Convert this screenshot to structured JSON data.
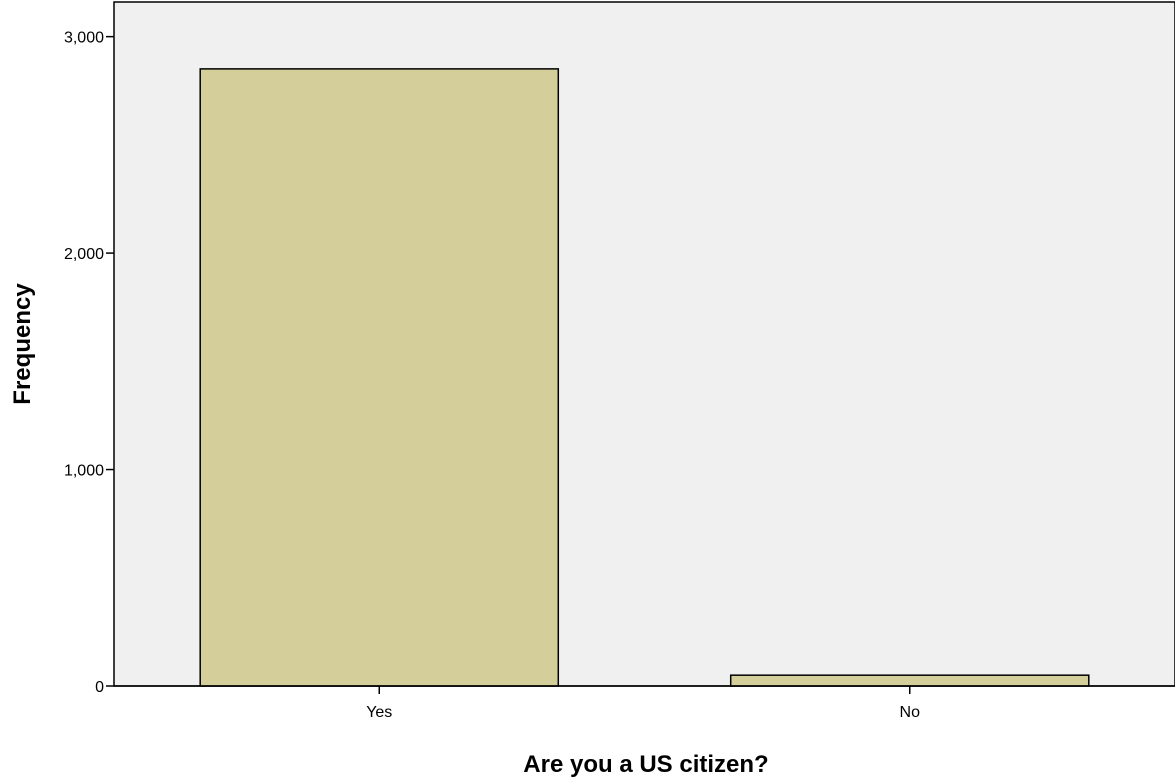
{
  "chart_data": {
    "type": "bar",
    "title": "",
    "xlabel": "Are you a US citizen?",
    "ylabel": "Frequency",
    "categories": [
      "Yes",
      "No"
    ],
    "values": [
      2851,
      50
    ],
    "ylim": [
      0,
      3160
    ],
    "yticks": [
      0,
      1000,
      2000,
      3000
    ],
    "ytick_labels": [
      "0",
      "1,000",
      "2,000",
      "3,000"
    ],
    "grid": false,
    "legend": "none",
    "colors": {
      "plot_background": "#f0f0f0",
      "bar_fill": "#d3ce9a",
      "bar_stroke": "#000000"
    }
  }
}
